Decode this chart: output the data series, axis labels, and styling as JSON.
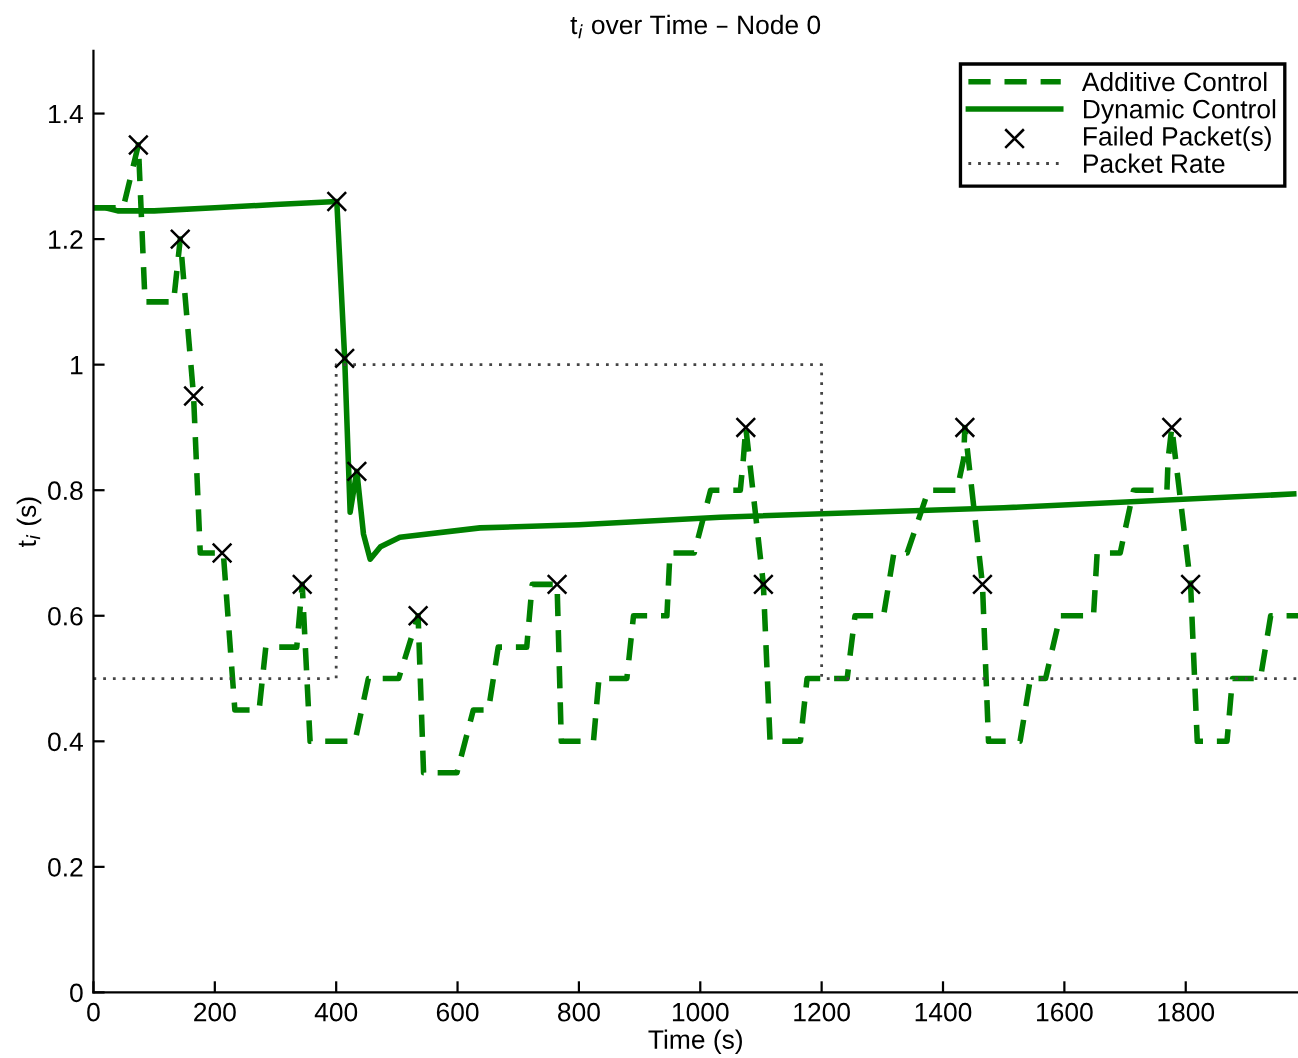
{
  "chart_data": {
    "type": "line",
    "title": "t$_{i}$ over Time – Node 0",
    "xlabel": "Time (s)",
    "ylabel": "t$_{i}$ (s)",
    "xlim": [
      0,
      1985
    ],
    "ylim": [
      0,
      1.5
    ],
    "xticks": [
      0,
      200,
      400,
      600,
      800,
      1000,
      1200,
      1400,
      1600,
      1800
    ],
    "yticks": [
      0,
      0.2,
      0.4,
      0.6,
      0.8,
      1,
      1.2,
      1.4
    ],
    "grid": false,
    "legend": "top right",
    "series": [
      {
        "name": "Additive Control",
        "line_style": "dashed",
        "color": "#008000",
        "x": [
          0,
          49,
          74,
          85,
          132,
          143,
          165,
          176,
          214,
          233,
          273,
          284,
          335,
          344,
          357,
          431,
          453,
          503,
          535,
          544,
          599,
          626,
          651,
          667,
          714,
          723,
          747,
          764,
          771,
          824,
          833,
          879,
          890,
          945,
          950,
          990,
          1017,
          1066,
          1071,
          1075,
          1104,
          1115,
          1165,
          1176,
          1242,
          1255,
          1302,
          1319,
          1341,
          1376,
          1423,
          1434,
          1436,
          1465,
          1475,
          1527,
          1544,
          1569,
          1593,
          1648,
          1654,
          1692,
          1714,
          1769,
          1771,
          1777,
          1808,
          1819,
          1868,
          1877,
          1923,
          1940,
          1985
        ],
        "values": [
          1.25,
          1.25,
          1.35,
          1.1,
          1.1,
          1.2,
          0.95,
          0.7,
          0.7,
          0.45,
          0.45,
          0.55,
          0.55,
          0.65,
          0.4,
          0.4,
          0.5,
          0.5,
          0.6,
          0.35,
          0.35,
          0.45,
          0.45,
          0.55,
          0.55,
          0.65,
          0.65,
          0.65,
          0.4,
          0.4,
          0.5,
          0.5,
          0.6,
          0.6,
          0.7,
          0.7,
          0.8,
          0.8,
          0.85,
          0.9,
          0.65,
          0.4,
          0.4,
          0.5,
          0.5,
          0.6,
          0.6,
          0.7,
          0.7,
          0.8,
          0.8,
          0.85,
          0.9,
          0.65,
          0.4,
          0.4,
          0.5,
          0.5,
          0.6,
          0.6,
          0.7,
          0.7,
          0.8,
          0.8,
          0.85,
          0.9,
          0.65,
          0.4,
          0.4,
          0.5,
          0.5,
          0.6,
          0.6
        ]
      },
      {
        "name": "Dynamic Control",
        "line_style": "solid",
        "color": "#008000",
        "x": [
          0,
          20,
          40,
          100,
          200,
          300,
          401,
          414,
          423,
          434,
          445,
          456,
          473,
          505,
          637,
          800,
          1033,
          1500,
          1978
        ],
        "values": [
          1.25,
          1.25,
          1.245,
          1.245,
          1.25,
          1.255,
          1.26,
          1.01,
          0.765,
          0.83,
          0.73,
          0.69,
          0.71,
          0.725,
          0.74,
          0.745,
          0.757,
          0.772,
          0.794
        ]
      },
      {
        "name": "Failed Packet(s)",
        "type": "scatter",
        "marker": "cross",
        "color": "#000000",
        "x": [
          74,
          143,
          165,
          212,
          344,
          401,
          414,
          434,
          535,
          764,
          1075,
          1104,
          1436,
          1465,
          1777,
          1808
        ],
        "values": [
          1.35,
          1.2,
          0.95,
          0.7,
          0.65,
          1.26,
          1.01,
          0.83,
          0.6,
          0.65,
          0.9,
          0.65,
          0.9,
          0.65,
          0.9,
          0.65
        ]
      },
      {
        "name": "Packet Rate",
        "type": "step",
        "line_style": "dotted",
        "color": "#444444",
        "x": [
          0,
          400,
          1200,
          1985
        ],
        "values": [
          0.5,
          1,
          0.5,
          0.5
        ]
      }
    ]
  }
}
